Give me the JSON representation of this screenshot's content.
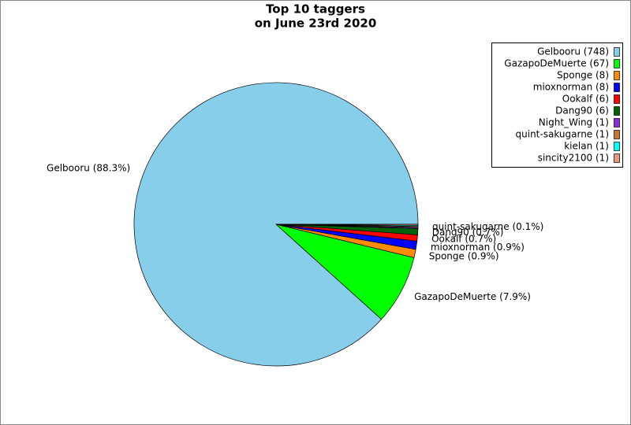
{
  "chart_data": {
    "type": "pie",
    "title_lines": [
      "Top 10 taggers",
      "on June 23rd 2020"
    ],
    "categories": [
      "Gelbooru",
      "GazapoDeMuerte",
      "Sponge",
      "mioxnorman",
      "Ookalf",
      "Dang90",
      "Night_Wing",
      "quint-sakugarne",
      "kielan",
      "sincity2100"
    ],
    "values": [
      748,
      67,
      8,
      8,
      6,
      6,
      1,
      1,
      1,
      1
    ],
    "colors": [
      "#87ceeb",
      "#00ff00",
      "#ff8c00",
      "#0000ff",
      "#ff0000",
      "#006400",
      "#8a2be2",
      "#c87533",
      "#00ffff",
      "#e9967a"
    ],
    "legend_labels": [
      "Gelbooru (748)",
      "GazapoDeMuerte (67)",
      "Sponge (8)",
      "mioxnorman (8)",
      "Ookalf (6)",
      "Dang90 (6)",
      "Night_Wing (1)",
      "quint-sakugarne (1)",
      "kielan (1)",
      "sincity2100 (1)"
    ],
    "slice_labels": [
      "Gelbooru (88.3%)",
      "GazapoDeMuerte (7.9%)",
      "Sponge (0.9%)",
      "mioxnorman (0.9%)",
      "Ookalf (0.7%)",
      "Dang90 (0.7%)",
      null,
      "quint-sakugarne (0.1%)",
      null,
      null
    ],
    "legend": "upper right"
  }
}
